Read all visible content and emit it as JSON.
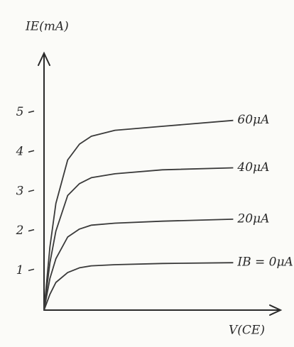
{
  "chart_data": {
    "type": "line",
    "title": "IE(mA)",
    "x_label": "V(CE)",
    "x": [
      0,
      0.25,
      0.5,
      1,
      1.5,
      2,
      3,
      5,
      8
    ],
    "xlim": [
      0,
      10
    ],
    "ylim": [
      0,
      6.5
    ],
    "yticks": [
      1,
      2,
      3,
      4,
      5
    ],
    "grid": false,
    "series": [
      {
        "name": "60μA",
        "color": "#3a3a3a",
        "values": [
          0,
          1.6,
          2.7,
          3.8,
          4.2,
          4.4,
          4.55,
          4.65,
          4.8
        ]
      },
      {
        "name": "40μA",
        "color": "#3a3a3a",
        "values": [
          0,
          1.2,
          2.0,
          2.9,
          3.2,
          3.35,
          3.45,
          3.55,
          3.6
        ]
      },
      {
        "name": "20μA",
        "color": "#3a3a3a",
        "values": [
          0,
          0.8,
          1.3,
          1.85,
          2.05,
          2.15,
          2.2,
          2.25,
          2.3
        ]
      },
      {
        "name": "IB = 0μA",
        "color": "#3a3a3a",
        "values": [
          0,
          0.4,
          0.7,
          0.95,
          1.07,
          1.12,
          1.15,
          1.18,
          1.2
        ]
      }
    ]
  }
}
